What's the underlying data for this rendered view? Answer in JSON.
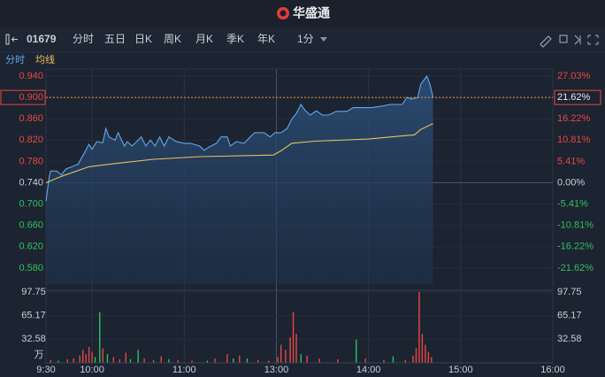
{
  "header": {
    "brand": "华盛通"
  },
  "toolbar": {
    "code": "01679",
    "tabs": [
      "分时",
      "五日",
      "日K",
      "周K",
      "月K",
      "季K",
      "年K"
    ],
    "active_tab": 0,
    "interval": "1分"
  },
  "chart_data": [
    {
      "type": "line",
      "prev_close": 0.74,
      "xlim": [
        0,
        330
      ],
      "ylim": [
        0.55,
        0.95
      ],
      "yticks": [
        {
          "value": 0.94,
          "label": "0.940"
        },
        {
          "value": 0.9,
          "label": "0.900"
        },
        {
          "value": 0.86,
          "label": "0.860"
        },
        {
          "value": 0.82,
          "label": "0.820"
        },
        {
          "value": 0.78,
          "label": "0.780"
        },
        {
          "value": 0.74,
          "label": "0.740"
        },
        {
          "value": 0.7,
          "label": "0.700"
        },
        {
          "value": 0.66,
          "label": "0.660"
        },
        {
          "value": 0.62,
          "label": "0.620"
        },
        {
          "value": 0.58,
          "label": "0.580"
        }
      ],
      "y2lim": [
        -25.68,
        28.38
      ],
      "y2ticks": [
        {
          "value": 27.03,
          "label": "27.03%"
        },
        {
          "value": 21.62,
          "label": "21.62%"
        },
        {
          "value": 16.22,
          "label": "16.22%"
        },
        {
          "value": 10.81,
          "label": "10.81%"
        },
        {
          "value": 5.41,
          "label": "5.41%"
        },
        {
          "value": 0,
          "label": "0.00%"
        },
        {
          "value": -5.41,
          "label": "-5.41%"
        },
        {
          "value": -10.81,
          "label": "-10.81%"
        },
        {
          "value": -16.22,
          "label": "-16.22%"
        },
        {
          "value": -21.62,
          "label": "-21.62%"
        }
      ],
      "series": [
        {
          "name": "分时",
          "color": "#5fa8ea",
          "x": [
            0,
            2,
            3,
            7,
            10,
            13,
            17,
            21,
            23,
            25,
            28,
            30,
            33,
            37,
            39,
            41,
            45,
            47,
            51,
            53,
            56,
            59,
            62,
            65,
            68,
            71,
            74,
            77,
            80,
            85,
            90,
            94,
            100,
            103,
            106,
            111,
            114,
            118,
            120,
            124,
            129,
            133,
            136,
            142,
            146,
            149,
            153,
            157,
            160,
            163,
            166,
            169,
            172,
            176,
            180,
            184,
            189,
            196,
            200,
            206,
            212,
            219,
            224,
            232,
            235,
            238,
            242,
            244,
            248,
            250,
            252
          ],
          "values": [
            0.705,
            0.75,
            0.762,
            0.762,
            0.755,
            0.766,
            0.77,
            0.775,
            0.786,
            0.796,
            0.812,
            0.803,
            0.817,
            0.815,
            0.842,
            0.826,
            0.82,
            0.834,
            0.809,
            0.817,
            0.809,
            0.817,
            0.826,
            0.809,
            0.82,
            0.809,
            0.826,
            0.809,
            0.826,
            0.817,
            0.814,
            0.814,
            0.809,
            0.801,
            0.807,
            0.814,
            0.826,
            0.826,
            0.809,
            0.817,
            0.814,
            0.826,
            0.834,
            0.834,
            0.826,
            0.834,
            0.834,
            0.842,
            0.859,
            0.87,
            0.887,
            0.875,
            0.867,
            0.875,
            0.867,
            0.867,
            0.874,
            0.874,
            0.881,
            0.881,
            0.881,
            0.884,
            0.887,
            0.887,
            0.9,
            0.897,
            0.9,
            0.925,
            0.94,
            0.925,
            0.9
          ]
        },
        {
          "name": "均线",
          "color": "#e8c35a",
          "x": [
            0,
            10,
            28,
            45,
            70,
            100,
            148,
            153,
            160,
            175,
            210,
            240,
            244,
            252
          ],
          "values": [
            0.74,
            0.752,
            0.77,
            0.776,
            0.784,
            0.789,
            0.792,
            0.8,
            0.814,
            0.818,
            0.822,
            0.83,
            0.84,
            0.851
          ]
        }
      ]
    },
    {
      "type": "bar",
      "unit": "万",
      "xlim": [
        0,
        330
      ],
      "xticks": [
        {
          "value": 0,
          "label": "9:30"
        },
        {
          "value": 30,
          "label": "10:00"
        },
        {
          "value": 90,
          "label": "11:00"
        },
        {
          "value": 150,
          "label": "13:00"
        },
        {
          "value": 210,
          "label": "14:00"
        },
        {
          "value": 270,
          "label": "15:00"
        },
        {
          "value": 330,
          "label": "16:00"
        }
      ],
      "ylim": [
        0,
        97.75
      ],
      "yticks": [
        97.75,
        65.17,
        32.58
      ],
      "x": [
        3,
        8,
        14,
        18,
        22,
        24,
        26,
        28,
        30,
        32,
        35,
        37,
        40,
        44,
        48,
        52,
        55,
        60,
        64,
        70,
        75,
        80,
        86,
        95,
        105,
        110,
        118,
        122,
        126,
        131,
        138,
        145,
        151,
        153,
        156,
        159,
        161,
        163,
        166,
        170,
        178,
        190,
        202,
        208,
        220,
        226,
        234,
        239,
        241,
        243,
        245,
        247,
        249,
        251
      ],
      "values": [
        4,
        3,
        5,
        6,
        10,
        18,
        12,
        22,
        15,
        8,
        70,
        20,
        12,
        8,
        5,
        14,
        5,
        18,
        6,
        4,
        9,
        5,
        4,
        3,
        3,
        6,
        12,
        6,
        10,
        6,
        4,
        3,
        8,
        25,
        18,
        35,
        70,
        40,
        12,
        10,
        6,
        5,
        32,
        6,
        4,
        9,
        4,
        10,
        20,
        98,
        40,
        25,
        15,
        8
      ],
      "colors": [
        "#e8483f",
        "#2fc25b",
        "#e8483f",
        "#e8483f",
        "#e8483f",
        "#e8483f",
        "#e8483f",
        "#e8483f",
        "#e8483f",
        "#2fc25b",
        "#2fc25b",
        "#e8483f",
        "#2fc25b",
        "#e8483f",
        "#e8483f",
        "#e8483f",
        "#2fc25b",
        "#2fc25b",
        "#e8483f",
        "#e8483f",
        "#e8483f",
        "#2fc25b",
        "#e8483f",
        "#e8483f",
        "#2fc25b",
        "#e8483f",
        "#e8483f",
        "#2fc25b",
        "#e8483f",
        "#2fc25b",
        "#e8483f",
        "#e8483f",
        "#e8483f",
        "#e8483f",
        "#e8483f",
        "#e8483f",
        "#e8483f",
        "#e8483f",
        "#2fc25b",
        "#e8483f",
        "#e8483f",
        "#e8483f",
        "#2fc25b",
        "#e8483f",
        "#e8483f",
        "#2fc25b",
        "#e8483f",
        "#e8483f",
        "#e8483f",
        "#e8483f",
        "#e8483f",
        "#e8483f",
        "#e8483f",
        "#e8483f"
      ]
    }
  ]
}
